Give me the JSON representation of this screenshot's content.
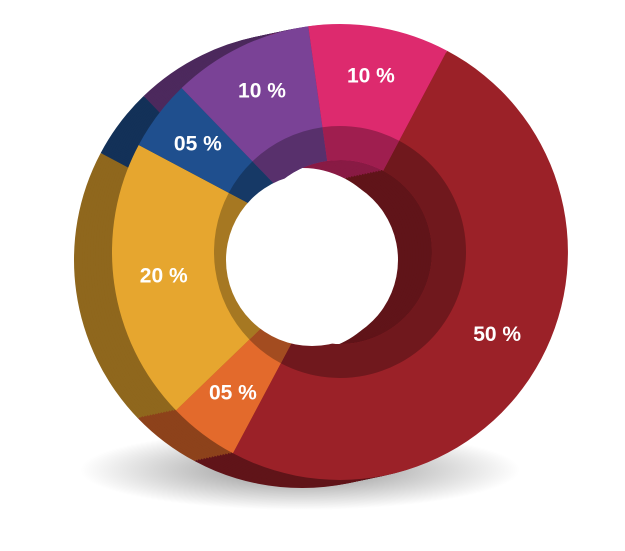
{
  "chart_data": {
    "type": "pie",
    "style": "3d-donut",
    "title": "",
    "slices": [
      {
        "label": "50 %",
        "value": 50,
        "color": "#9b2128"
      },
      {
        "label": "05 %",
        "value": 5,
        "color": "#e36a2c"
      },
      {
        "label": "20 %",
        "value": 20,
        "color": "#e6a62f"
      },
      {
        "label": "05 %",
        "value": 5,
        "color": "#1f4f8e"
      },
      {
        "label": "10 %",
        "value": 10,
        "color": "#7a4296"
      },
      {
        "label": "10 %",
        "value": 10,
        "color": "#dd2a6e"
      }
    ],
    "legend": "none"
  }
}
